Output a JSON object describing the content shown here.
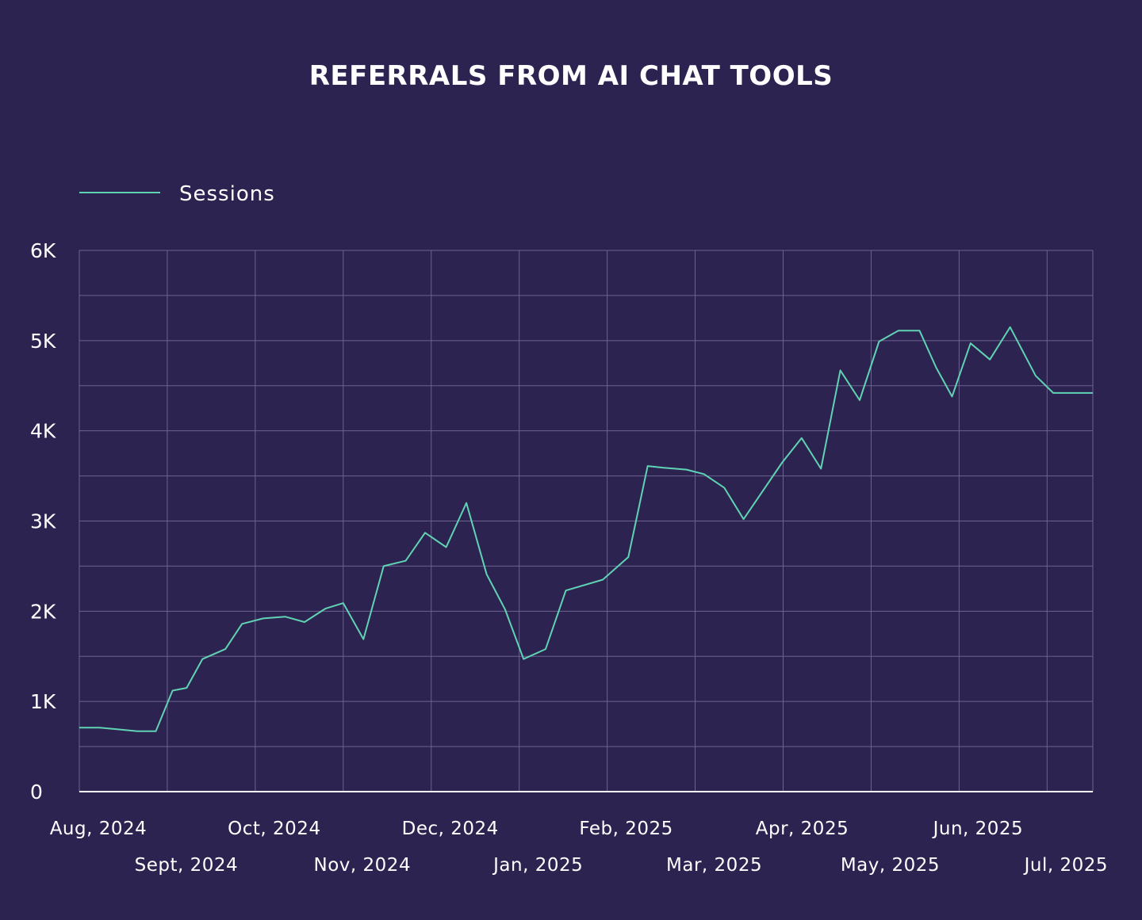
{
  "chart_data": {
    "type": "line",
    "title": "REFERRALS FROM AI CHAT TOOLS",
    "xlabel": "",
    "ylabel": "",
    "ylim": [
      0,
      6000
    ],
    "y_ticks": [
      "0",
      "1K",
      "2K",
      "3K",
      "4K",
      "5K",
      "6K"
    ],
    "x_ticks": [
      "Aug, 2024",
      "Sept, 2024",
      "Oct, 2024",
      "Nov, 2024",
      "Dec, 2024",
      "Jan, 2025",
      "Feb, 2025",
      "Mar, 2025",
      "Apr, 2025",
      "May, 2025",
      "Jun, 2025",
      "Jul, 2025"
    ],
    "x": [
      0.0,
      0.23,
      0.45,
      0.66,
      0.87,
      1.06,
      1.22,
      1.4,
      1.66,
      1.85,
      2.09,
      2.34,
      2.56,
      2.8,
      3.0,
      3.23,
      3.46,
      3.71,
      3.93,
      4.17,
      4.4,
      4.63,
      4.84,
      5.05,
      5.3,
      5.53,
      5.95,
      6.24,
      6.46,
      6.64,
      6.9,
      7.1,
      7.33,
      7.55,
      7.99,
      8.21,
      8.43,
      8.65,
      8.87,
      9.09,
      9.31,
      9.55,
      9.74,
      9.92,
      10.13,
      10.35,
      10.58,
      10.87,
      11.07,
      11.28,
      11.52
    ],
    "series": [
      {
        "name": "Sessions",
        "color": "#5fd3b3",
        "values": [
          710,
          710,
          690,
          670,
          670,
          1120,
          1150,
          1470,
          1580,
          1860,
          1920,
          1940,
          1880,
          2030,
          2090,
          1690,
          2500,
          2560,
          2870,
          2710,
          3200,
          2410,
          2020,
          1470,
          1580,
          2230,
          2350,
          2600,
          3610,
          3590,
          3570,
          3520,
          3370,
          3020,
          3650,
          3920,
          3580,
          4670,
          4340,
          4990,
          5110,
          5110,
          4700,
          4380,
          4970,
          4790,
          5150,
          4610,
          4420,
          4420,
          4420
        ]
      }
    ],
    "grid": true,
    "legend_position": "top-left"
  },
  "colors": {
    "background": "#2d2350",
    "grid": "#6b6390",
    "line": "#5fd3b3",
    "text": "#ffffff"
  }
}
